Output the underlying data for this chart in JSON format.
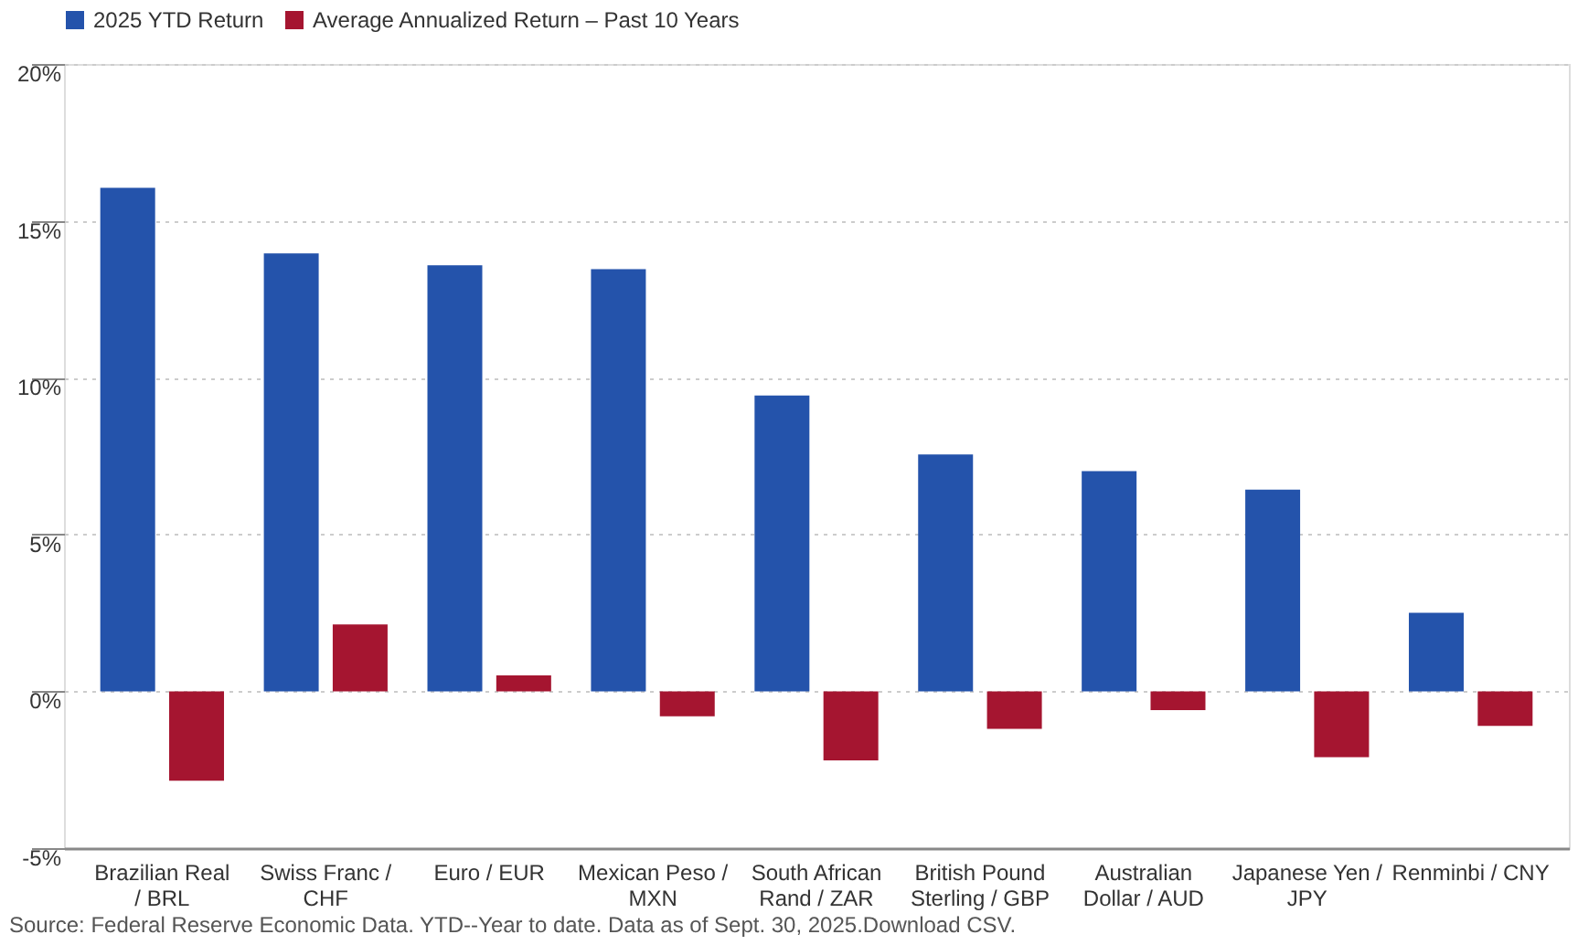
{
  "chart_data": {
    "type": "bar",
    "categories": [
      "Brazilian Real / BRL",
      "Swiss Franc / CHF",
      "Euro / EUR",
      "Mexican Peso / MXN",
      "South African Rand / ZAR",
      "British Pound Sterling / GBP",
      "Australian Dollar / AUD",
      "Japanese Yen / JPY",
      "Renminbi / CNY"
    ],
    "series": [
      {
        "name": "2025 YTD Return",
        "color": "#2453ab",
        "values": [
          16.05,
          13.96,
          13.58,
          13.46,
          9.43,
          7.55,
          7.02,
          6.43,
          2.5
        ]
      },
      {
        "name": "Average Annualized Return – Past 10 Years",
        "color": "#a51530",
        "values": [
          -2.85,
          2.13,
          0.51,
          -0.8,
          -2.2,
          -1.2,
          -0.6,
          -2.1,
          -1.1
        ]
      }
    ],
    "ylim": [
      -5,
      20
    ],
    "yticks": [
      {
        "value": -5,
        "label": "-5%"
      },
      {
        "value": 0,
        "label": "0%"
      },
      {
        "value": 5,
        "label": "5%"
      },
      {
        "value": 10,
        "label": "10%"
      },
      {
        "value": 15,
        "label": "15%"
      },
      {
        "value": 20,
        "label": "20%"
      }
    ],
    "grid": "y",
    "legend": "top left",
    "annotations": [
      "Source: Federal Reserve Economic Data. YTD--Year to date. Data as of Sept. 30, 2025.Download CSV."
    ]
  }
}
